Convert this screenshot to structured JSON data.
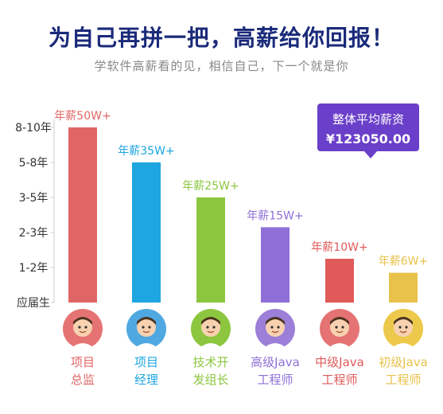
{
  "header": {
    "title": "为自己再拼一把，高薪给你回报！",
    "subtitle": "学软件高薪看的见，相信自己，下一个就是你"
  },
  "average_box": {
    "label": "整体平均薪资",
    "value": "¥123050.00",
    "color": "#6a3fc9"
  },
  "chart_data": {
    "type": "bar",
    "y_axis": {
      "tick_labels": [
        "8-10年",
        "5-8年",
        "3-5年",
        "2-3年",
        "1-2年",
        "应届生"
      ],
      "ordinal_levels": [
        5,
        4,
        3,
        2,
        1,
        0
      ]
    },
    "categories": [
      "项目总监",
      "项目经理",
      "技术开发组长",
      "高级Java工程师",
      "中级Java工程师",
      "初级Java工程师"
    ],
    "category_label_lines": [
      [
        "项目",
        "总监"
      ],
      [
        "项目",
        "经理"
      ],
      [
        "技术开",
        "发组长"
      ],
      [
        "高级Java",
        "工程师"
      ],
      [
        "中级Java",
        "工程师"
      ],
      [
        "初级Java",
        "工程师"
      ]
    ],
    "values": [
      5.0,
      4.0,
      3.0,
      2.15,
      1.25,
      0.85
    ],
    "data_labels": [
      "年薪50W+",
      "年薪35W+",
      "年薪25W+",
      "年薪15W+",
      "年薪10W+",
      "年薪6W+"
    ],
    "colors": [
      "#e06666",
      "#1ea6e0",
      "#8cc63f",
      "#8e6fd8",
      "#e05a5a",
      "#e8c24a"
    ],
    "ylim": [
      0,
      5
    ],
    "grid": false
  },
  "avatars": [
    {
      "icon": "avatar-director-icon",
      "bg": "#e57373"
    },
    {
      "icon": "avatar-manager-icon",
      "bg": "#4fa8e0"
    },
    {
      "icon": "avatar-tech-lead-icon",
      "bg": "#8cc63f"
    },
    {
      "icon": "avatar-senior-java-icon",
      "bg": "#9b7fd8"
    },
    {
      "icon": "avatar-mid-java-icon",
      "bg": "#e57373"
    },
    {
      "icon": "avatar-junior-java-icon",
      "bg": "#ecc94b"
    }
  ]
}
